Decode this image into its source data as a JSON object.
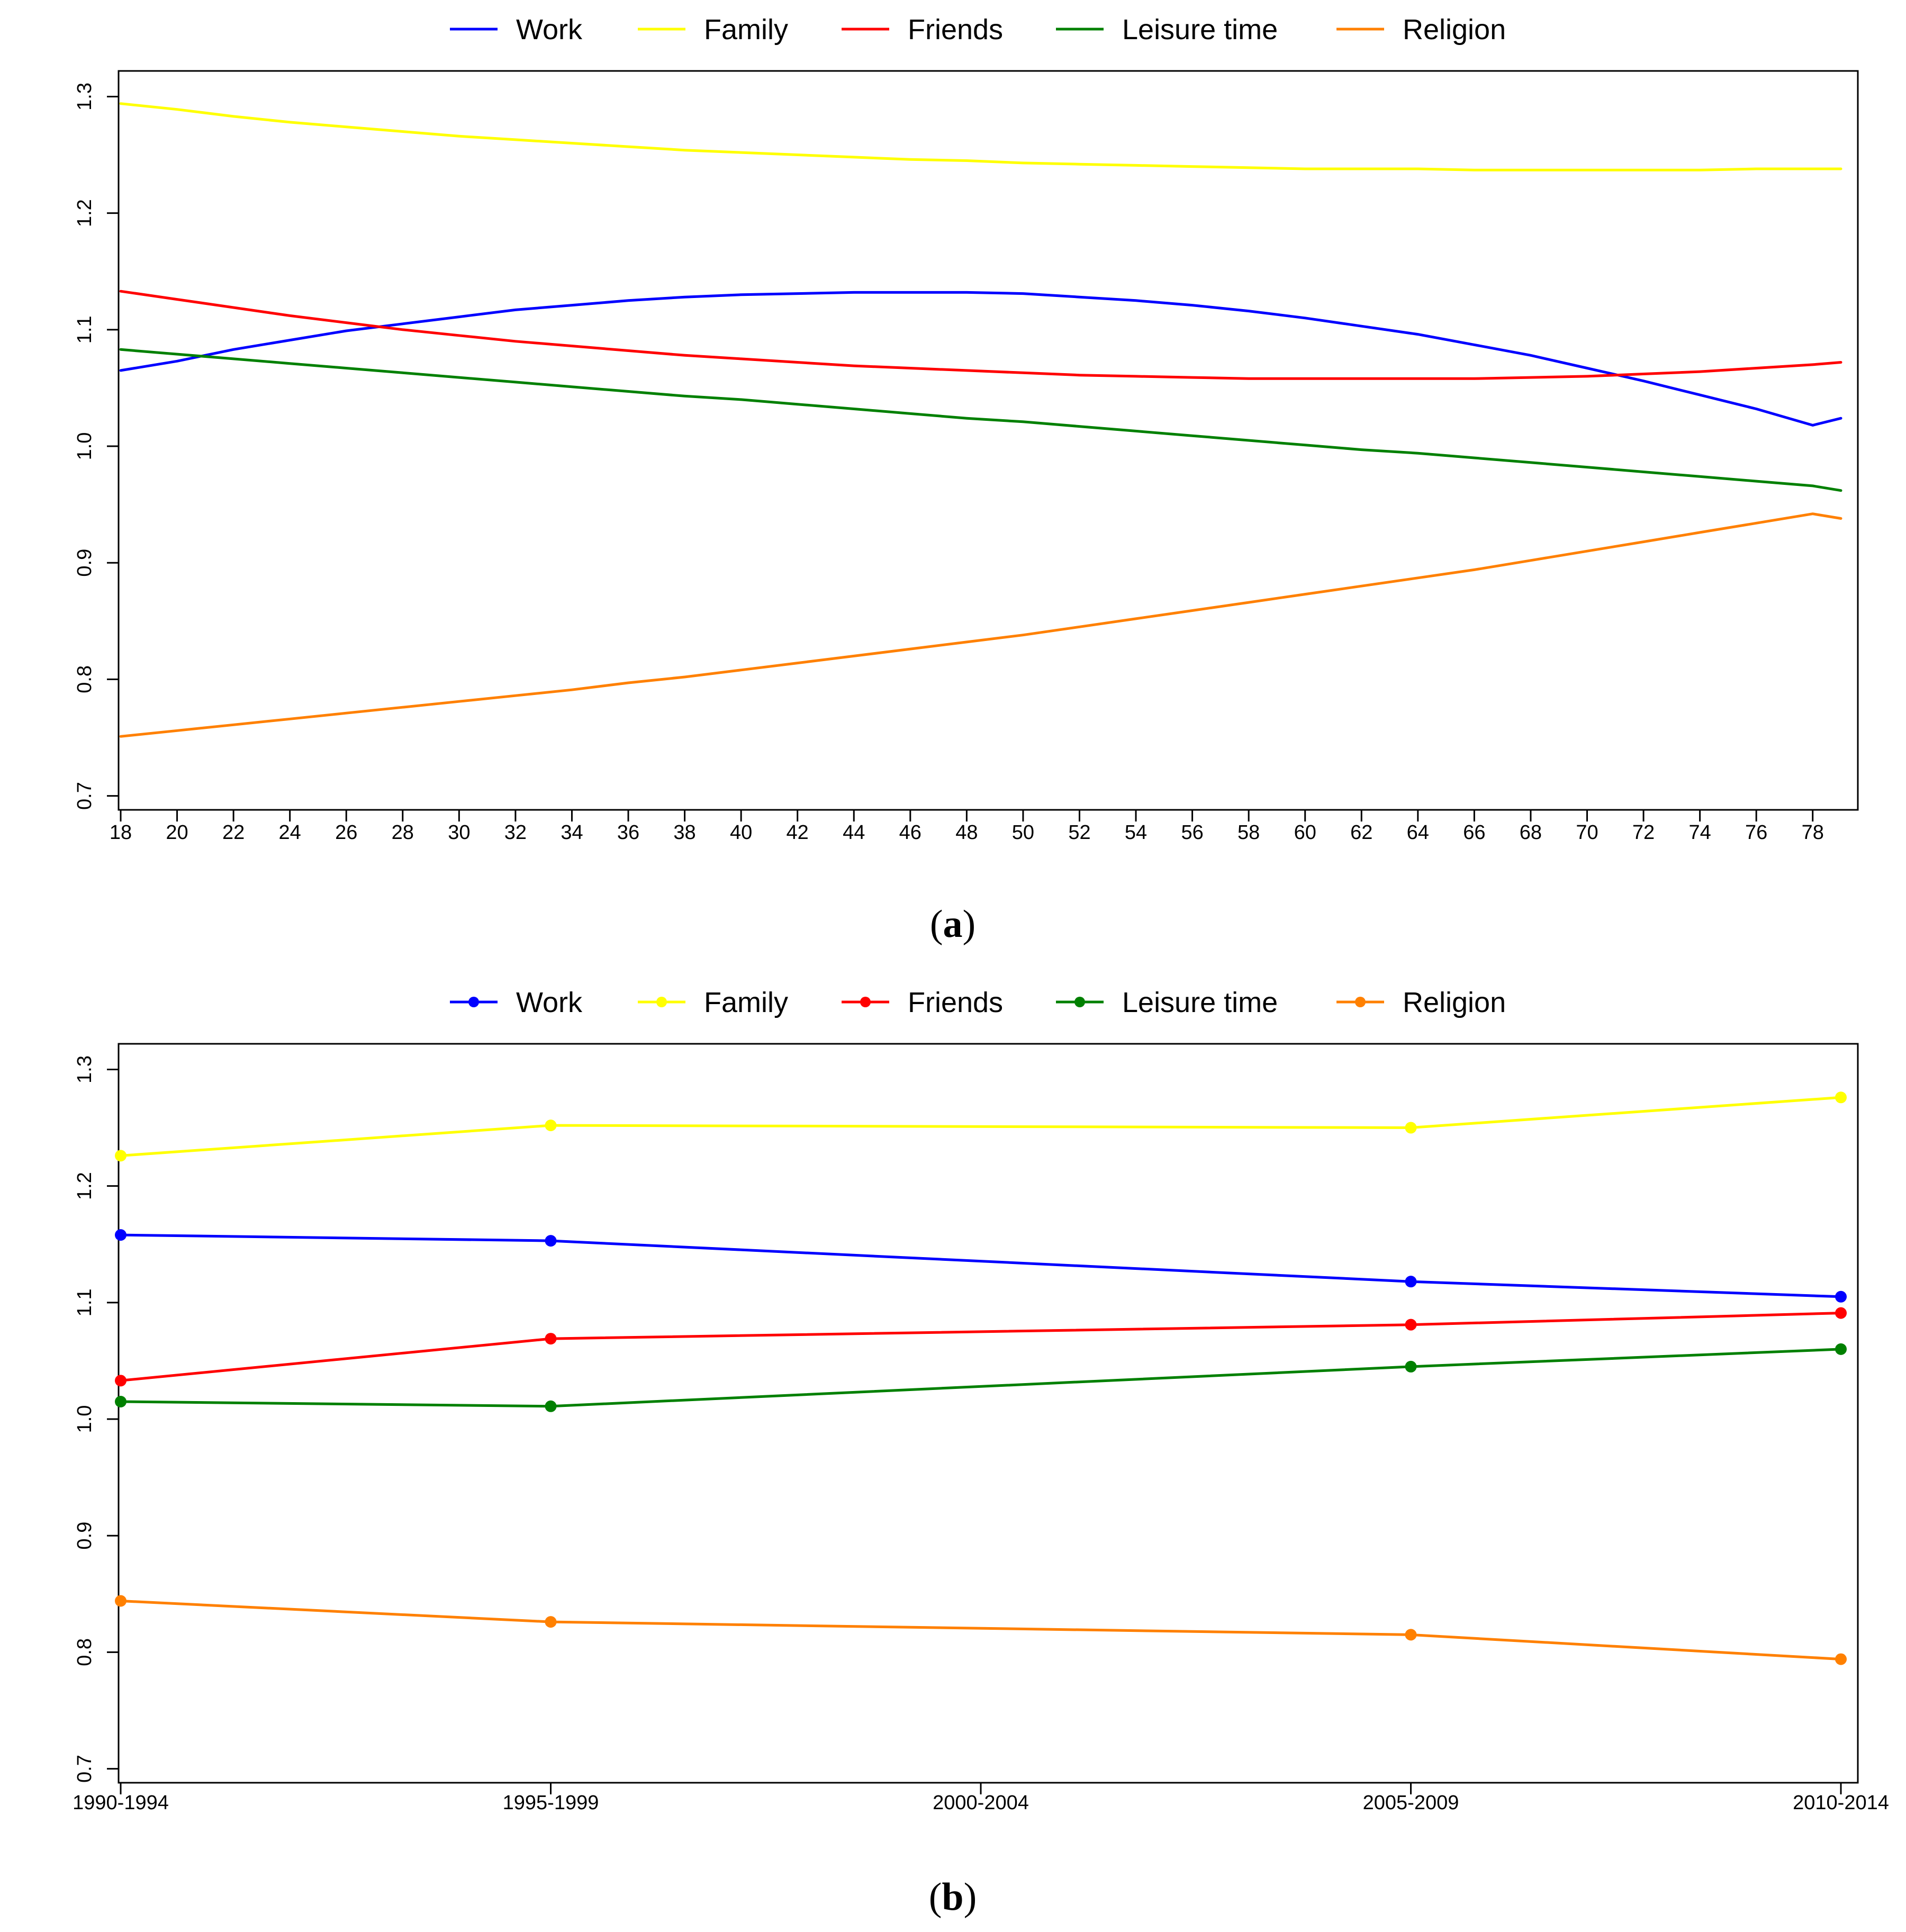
{
  "chart_data": [
    {
      "type": "line",
      "panel_label": "a",
      "title": "",
      "xlabel": "",
      "ylabel": "",
      "x": [
        18,
        20,
        22,
        24,
        26,
        28,
        30,
        32,
        34,
        36,
        38,
        40,
        42,
        44,
        46,
        48,
        50,
        52,
        54,
        56,
        58,
        60,
        62,
        64,
        66,
        68,
        70,
        72,
        74,
        76,
        78,
        79
      ],
      "x_ticks": [
        "18",
        "20",
        "22",
        "24",
        "26",
        "28",
        "30",
        "32",
        "34",
        "36",
        "38",
        "40",
        "42",
        "44",
        "46",
        "48",
        "50",
        "52",
        "54",
        "56",
        "58",
        "60",
        "62",
        "64",
        "66",
        "68",
        "70",
        "72",
        "74",
        "76",
        "78"
      ],
      "y_ticks": [
        "0.7",
        "0.8",
        "0.9",
        "1.0",
        "1.1",
        "1.2",
        "1.3"
      ],
      "xlim": [
        17.8,
        80
      ],
      "ylim": [
        0.688,
        1.322
      ],
      "legend_position": "top",
      "series": [
        {
          "name": "Work",
          "color": "#0000FF",
          "values": [
            1.065,
            1.073,
            1.083,
            1.091,
            1.099,
            1.105,
            1.111,
            1.117,
            1.121,
            1.125,
            1.128,
            1.13,
            1.131,
            1.132,
            1.132,
            1.132,
            1.131,
            1.128,
            1.125,
            1.121,
            1.116,
            1.11,
            1.103,
            1.096,
            1.087,
            1.078,
            1.067,
            1.056,
            1.044,
            1.032,
            1.018,
            1.024
          ]
        },
        {
          "name": "Family",
          "color": "#FFFF00",
          "values": [
            1.294,
            1.289,
            1.283,
            1.278,
            1.274,
            1.27,
            1.266,
            1.263,
            1.26,
            1.257,
            1.254,
            1.252,
            1.25,
            1.248,
            1.246,
            1.245,
            1.243,
            1.242,
            1.241,
            1.24,
            1.239,
            1.238,
            1.238,
            1.238,
            1.237,
            1.237,
            1.237,
            1.237,
            1.237,
            1.238,
            1.238,
            1.238
          ]
        },
        {
          "name": "Friends",
          "color": "#FF0000",
          "values": [
            1.133,
            1.126,
            1.119,
            1.112,
            1.106,
            1.1,
            1.095,
            1.09,
            1.086,
            1.082,
            1.078,
            1.075,
            1.072,
            1.069,
            1.067,
            1.065,
            1.063,
            1.061,
            1.06,
            1.059,
            1.058,
            1.058,
            1.058,
            1.058,
            1.058,
            1.059,
            1.06,
            1.062,
            1.064,
            1.067,
            1.07,
            1.072
          ]
        },
        {
          "name": "Leisure time",
          "color": "#008000",
          "values": [
            1.083,
            1.079,
            1.075,
            1.071,
            1.067,
            1.063,
            1.059,
            1.055,
            1.051,
            1.047,
            1.043,
            1.04,
            1.036,
            1.032,
            1.028,
            1.024,
            1.021,
            1.017,
            1.013,
            1.009,
            1.005,
            1.001,
            0.997,
            0.994,
            0.99,
            0.986,
            0.982,
            0.978,
            0.974,
            0.97,
            0.966,
            0.962
          ]
        },
        {
          "name": "Religion",
          "color": "#FF8000",
          "values": [
            0.751,
            0.756,
            0.761,
            0.766,
            0.771,
            0.776,
            0.781,
            0.786,
            0.791,
            0.797,
            0.802,
            0.808,
            0.814,
            0.82,
            0.826,
            0.832,
            0.838,
            0.845,
            0.852,
            0.859,
            0.866,
            0.873,
            0.88,
            0.887,
            0.894,
            0.902,
            0.91,
            0.918,
            0.926,
            0.934,
            0.942,
            0.938
          ]
        }
      ]
    },
    {
      "type": "line",
      "panel_label": "b",
      "title": "",
      "xlabel": "",
      "ylabel": "",
      "categories": [
        "1990-1994",
        "1995-1999",
        "2000-2004",
        "2005-2009",
        "2010-2014"
      ],
      "y_ticks": [
        "0.7",
        "0.8",
        "0.9",
        "1.0",
        "1.1",
        "1.2",
        "1.3"
      ],
      "ylim": [
        0.688,
        1.322
      ],
      "legend_position": "top",
      "markers": true,
      "series": [
        {
          "name": "Work",
          "color": "#0000FF",
          "values": [
            1.158,
            1.153,
            null,
            1.118,
            1.105
          ]
        },
        {
          "name": "Family",
          "color": "#FFFF00",
          "values": [
            1.226,
            1.252,
            null,
            1.25,
            1.276
          ]
        },
        {
          "name": "Friends",
          "color": "#FF0000",
          "values": [
            1.033,
            1.069,
            null,
            1.081,
            1.091
          ]
        },
        {
          "name": "Leisure time",
          "color": "#008000",
          "values": [
            1.015,
            1.011,
            null,
            1.045,
            1.06
          ]
        },
        {
          "name": "Religion",
          "color": "#FF8000",
          "values": [
            0.844,
            0.826,
            null,
            0.815,
            0.794
          ]
        }
      ]
    }
  ]
}
